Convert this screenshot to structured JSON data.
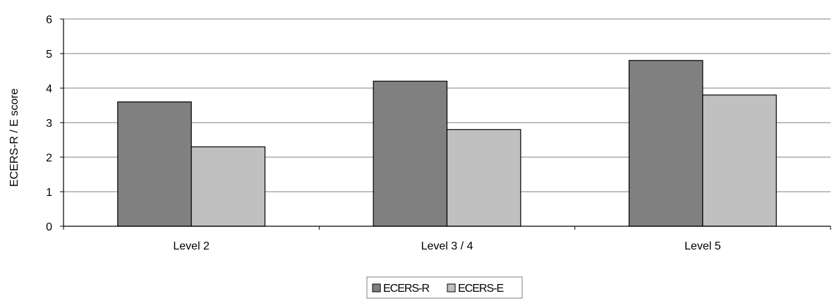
{
  "chart_data": {
    "type": "bar",
    "title": "",
    "xlabel": "",
    "ylabel": "ECERS-R / E score",
    "ylim": [
      0,
      6
    ],
    "yticks": [
      0,
      1,
      2,
      3,
      4,
      5,
      6
    ],
    "grid": true,
    "legend_position": "bottom",
    "categories": [
      "Level 2",
      "Level 3 / 4",
      "Level 5"
    ],
    "series": [
      {
        "name": "ECERS-R",
        "values": [
          3.6,
          4.2,
          4.8
        ],
        "color": "#808080"
      },
      {
        "name": "ECERS-E",
        "values": [
          2.3,
          2.8,
          3.8
        ],
        "color": "#c0c0c0"
      }
    ]
  }
}
